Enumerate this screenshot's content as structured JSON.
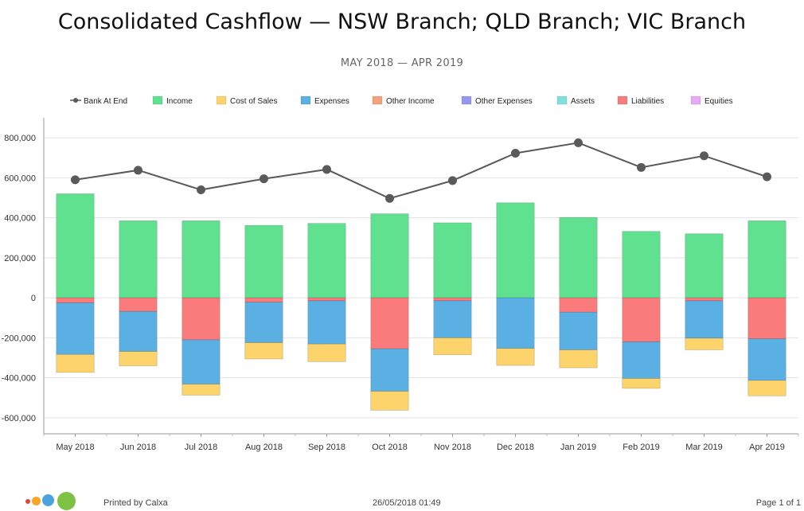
{
  "report": {
    "title": "Consolidated Cashflow — NSW Branch; QLD Branch; VIC Branch",
    "subtitle": "MAY 2018 — APR 2019"
  },
  "footer": {
    "printed_by": "Printed by Calxa",
    "datetime": "26/05/2018 01:49",
    "page": "Page 1 of 1",
    "logo_colors": [
      "#e8403a",
      "#f5a623",
      "#4aa3df",
      "#7dc242"
    ]
  },
  "chart_data": {
    "type": "bar",
    "stacked": true,
    "categories": [
      "May 2018",
      "Jun 2018",
      "Jul 2018",
      "Aug 2018",
      "Sep 2018",
      "Oct 2018",
      "Nov 2018",
      "Dec 2018",
      "Jan 2019",
      "Feb 2019",
      "Mar 2019",
      "Apr 2019"
    ],
    "ylim": [
      -680000,
      900000
    ],
    "yticks": [
      800000,
      600000,
      400000,
      200000,
      0,
      -200000,
      -400000,
      -600000
    ],
    "ytick_labels": [
      "800,000",
      "600,000",
      "400,000",
      "200,000",
      "0",
      "-200,000",
      "-400,000",
      "-600,000"
    ],
    "grid": true,
    "legend_position": "top",
    "legend": [
      {
        "name": "Bank At End",
        "kind": "line",
        "color": "#5a5a5a"
      },
      {
        "name": "Income",
        "kind": "box",
        "color": "#5fe18f"
      },
      {
        "name": "Cost of Sales",
        "kind": "box",
        "color": "#fdd36b"
      },
      {
        "name": "Expenses",
        "kind": "box",
        "color": "#5aafe3"
      },
      {
        "name": "Other Income",
        "kind": "box",
        "color": "#f5a27a"
      },
      {
        "name": "Other Expenses",
        "kind": "box",
        "color": "#9698ee"
      },
      {
        "name": "Assets",
        "kind": "box",
        "color": "#7fe0dc"
      },
      {
        "name": "Liabilities",
        "kind": "box",
        "color": "#f97b7b"
      },
      {
        "name": "Equities",
        "kind": "box",
        "color": "#e8a9f4"
      }
    ],
    "series": [
      {
        "name": "Income",
        "color": "#5fe18f",
        "values": [
          520000,
          385000,
          385000,
          362000,
          372000,
          420000,
          375000,
          475000,
          402000,
          332000,
          320000,
          385000
        ]
      },
      {
        "name": "Liabilities",
        "color": "#f97b7b",
        "values": [
          -25000,
          -68000,
          -210000,
          -22000,
          -15000,
          -255000,
          -15000,
          0,
          -72000,
          -220000,
          -15000,
          -205000
        ]
      },
      {
        "name": "Expenses",
        "color": "#5aafe3",
        "values": [
          -258000,
          -200000,
          -222000,
          -202000,
          -216000,
          -212000,
          -185000,
          -253000,
          -188000,
          -183000,
          -187000,
          -208000
        ]
      },
      {
        "name": "Cost of Sales",
        "color": "#fdd36b",
        "values": [
          -90000,
          -72000,
          -55000,
          -82000,
          -88000,
          -95000,
          -85000,
          -85000,
          -90000,
          -50000,
          -58000,
          -77000
        ]
      }
    ],
    "line": {
      "name": "Bank At End",
      "color": "#5a5a5a",
      "values": [
        590000,
        638000,
        540000,
        595000,
        642000,
        497000,
        586000,
        723000,
        775000,
        652000,
        710000,
        605000
      ]
    }
  }
}
